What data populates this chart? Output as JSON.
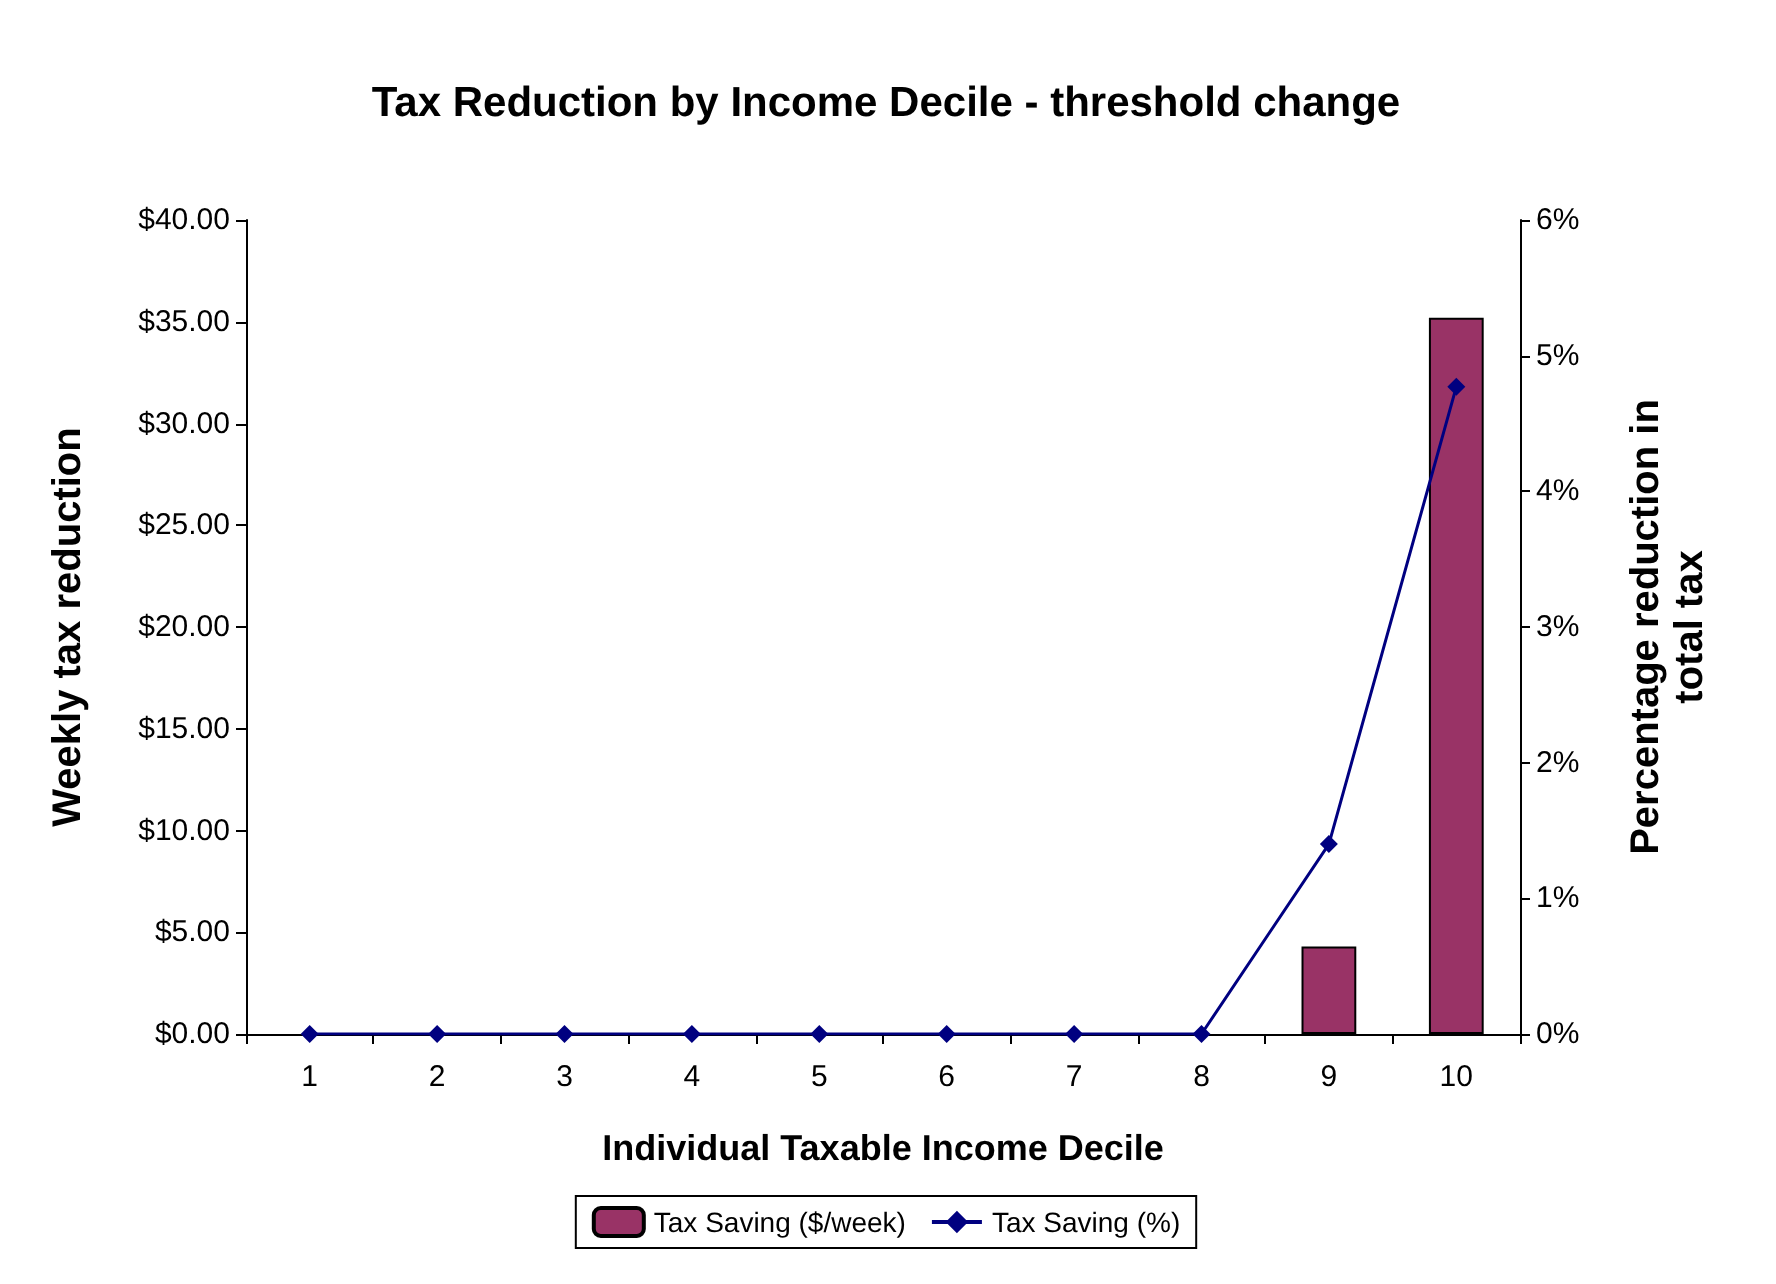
{
  "chart_data": {
    "type": "bar",
    "title": "Tax Reduction by Income Decile - threshold change",
    "xlabel": "Individual Taxable Income Decile",
    "ylabel": "Weekly tax reduction",
    "y2label": "Percentage reduction in\ntotal tax",
    "categories": [
      "1",
      "2",
      "3",
      "4",
      "5",
      "6",
      "7",
      "8",
      "9",
      "10"
    ],
    "series": [
      {
        "name": "Tax Saving ($/week)",
        "color": "#993366",
        "values": [
          0,
          0,
          0,
          0,
          0,
          0,
          0,
          0,
          4.3,
          35.2
        ]
      },
      {
        "name": "Tax Saving (%)",
        "type": "line",
        "axis": "y2",
        "color": "#000080",
        "values": [
          0,
          0,
          0,
          0,
          0,
          0,
          0,
          0,
          1.4,
          4.77
        ]
      }
    ],
    "ylim": [
      0,
      40
    ],
    "yticks": [
      {
        "value": 0,
        "label": "$0.00"
      },
      {
        "value": 5,
        "label": "$5.00"
      },
      {
        "value": 10,
        "label": "$10.00"
      },
      {
        "value": 15,
        "label": "$15.00"
      },
      {
        "value": 20,
        "label": "$20.00"
      },
      {
        "value": 25,
        "label": "$25.00"
      },
      {
        "value": 30,
        "label": "$30.00"
      },
      {
        "value": 35,
        "label": "$35.00"
      },
      {
        "value": 40,
        "label": "$40.00"
      }
    ],
    "y2lim": [
      0,
      6
    ],
    "y2ticks": [
      {
        "value": 0,
        "label": "0%"
      },
      {
        "value": 1,
        "label": "1%"
      },
      {
        "value": 2,
        "label": "2%"
      },
      {
        "value": 3,
        "label": "3%"
      },
      {
        "value": 4,
        "label": "4%"
      },
      {
        "value": 5,
        "label": "5%"
      },
      {
        "value": 6,
        "label": "6%"
      }
    ],
    "grid": false,
    "legend": "bottom",
    "marker": "diamond",
    "line_style": "solid"
  }
}
